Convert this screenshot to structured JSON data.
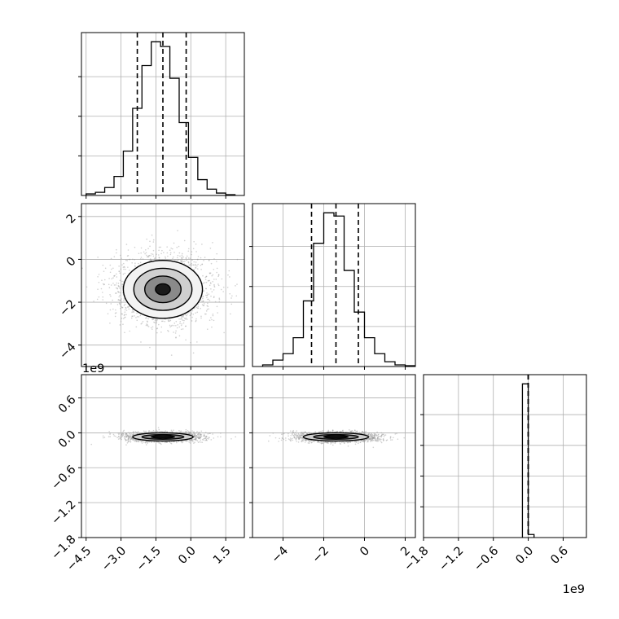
{
  "chart_data": {
    "type": "corner",
    "grid": true,
    "variables": [
      {
        "median": -1.2,
        "q16": -2.3,
        "q84": -0.2
      },
      {
        "median": -1.4,
        "q16": -2.6,
        "q84": -0.3
      },
      {
        "median": 0.0,
        "q16": 0.0,
        "q84": 0.0
      }
    ],
    "histograms": [
      {
        "bin_edges": [
          -4.5,
          -4.1,
          -3.7,
          -3.3,
          -2.9,
          -2.5,
          -2.1,
          -1.7,
          -1.3,
          -0.9,
          -0.5,
          -0.1,
          0.3,
          0.7,
          1.1,
          1.5,
          1.9
        ],
        "heights": [
          0.01,
          0.02,
          0.05,
          0.12,
          0.28,
          0.55,
          0.82,
          0.97,
          0.94,
          0.74,
          0.46,
          0.24,
          0.1,
          0.04,
          0.015,
          0.005
        ]
      },
      {
        "bin_edges": [
          -5.0,
          -4.5,
          -4.0,
          -3.5,
          -3.0,
          -2.5,
          -2.0,
          -1.5,
          -1.0,
          -0.5,
          0.0,
          0.5,
          1.0,
          1.5,
          2.0,
          2.5
        ],
        "heights": [
          0.01,
          0.04,
          0.08,
          0.18,
          0.41,
          0.77,
          0.96,
          0.94,
          0.6,
          0.34,
          0.18,
          0.08,
          0.03,
          0.01,
          0.005
        ]
      },
      {
        "bin_edges": [
          -0.1,
          0.0,
          0.1
        ],
        "heights": [
          1.0,
          0.02
        ]
      }
    ],
    "panels": [
      {
        "id": "hist-0",
        "xlim": [
          -4.7,
          2.3
        ],
        "xticks": [
          -4.5,
          -3.0,
          -1.5,
          0.0,
          1.5
        ],
        "xticklabels": [],
        "yticks": [
          0.25,
          0.5,
          0.75
        ],
        "yticklabels": []
      },
      {
        "id": "scatter-1-0",
        "xlim": [
          -4.7,
          2.3
        ],
        "ylim": [
          -5.0,
          2.6
        ],
        "xticks": [
          -4.5,
          -3.0,
          -1.5,
          0.0,
          1.5
        ],
        "xticklabels": [],
        "yticks": [
          2,
          0,
          -2,
          -4
        ],
        "yticklabels": [
          "2",
          "0",
          "−2",
          "−4"
        ],
        "center": [
          -1.2,
          -1.4
        ],
        "contour_sigmas": [
          [
            1.7,
            1.35
          ],
          [
            1.25,
            0.98
          ],
          [
            0.78,
            0.62
          ],
          [
            0.32,
            0.26
          ]
        ],
        "offset_label": "1e9"
      },
      {
        "id": "hist-1",
        "xlim": [
          -5.5,
          2.5
        ],
        "xticks": [
          -4,
          -2,
          0,
          2
        ],
        "xticklabels": [],
        "yticks": [
          0.25,
          0.5,
          0.75
        ],
        "yticklabels": []
      },
      {
        "id": "scatter-2-0",
        "xlim": [
          -4.7,
          2.3
        ],
        "ylim": [
          -1.8,
          1.0
        ],
        "xticks": [
          -4.5,
          -3.0,
          -1.5,
          0.0,
          1.5
        ],
        "xticklabels": [
          "−4.5",
          "−3.0",
          "−1.5",
          "0.0",
          "1.5"
        ],
        "yticks": [
          0.6,
          0.0,
          -0.6,
          -1.2,
          -1.8
        ],
        "yticklabels": [
          "0.6",
          "0.0",
          "−0.6",
          "−1.2",
          "−1.8"
        ],
        "center": [
          -1.2,
          -0.07
        ],
        "contour_sigmas": [
          [
            1.3,
            0.07
          ],
          [
            0.9,
            0.04
          ],
          [
            0.5,
            0.02
          ]
        ]
      },
      {
        "id": "scatter-2-1",
        "xlim": [
          -5.5,
          2.5
        ],
        "ylim": [
          -1.8,
          1.0
        ],
        "xticks": [
          -4,
          -2,
          0,
          2
        ],
        "xticklabels": [
          "−4",
          "−2",
          "0",
          "2"
        ],
        "yticks": [
          0.6,
          0.0,
          -0.6,
          -1.2,
          -1.8
        ],
        "yticklabels": [],
        "center": [
          -1.4,
          -0.07
        ],
        "contour_sigmas": [
          [
            1.6,
            0.07
          ],
          [
            1.1,
            0.04
          ],
          [
            0.6,
            0.02
          ]
        ]
      },
      {
        "id": "hist-2",
        "xlim": [
          -1.8,
          1.0
        ],
        "xticks": [
          -1.8,
          -1.2,
          -0.6,
          0.0,
          0.6
        ],
        "xticklabels": [
          "−1.8",
          "−1.2",
          "−0.6",
          "0.0",
          "0.6"
        ],
        "yticks": [
          0.2,
          0.4,
          0.6,
          0.8
        ],
        "yticklabels": [],
        "offset_label": "1e9"
      }
    ]
  }
}
